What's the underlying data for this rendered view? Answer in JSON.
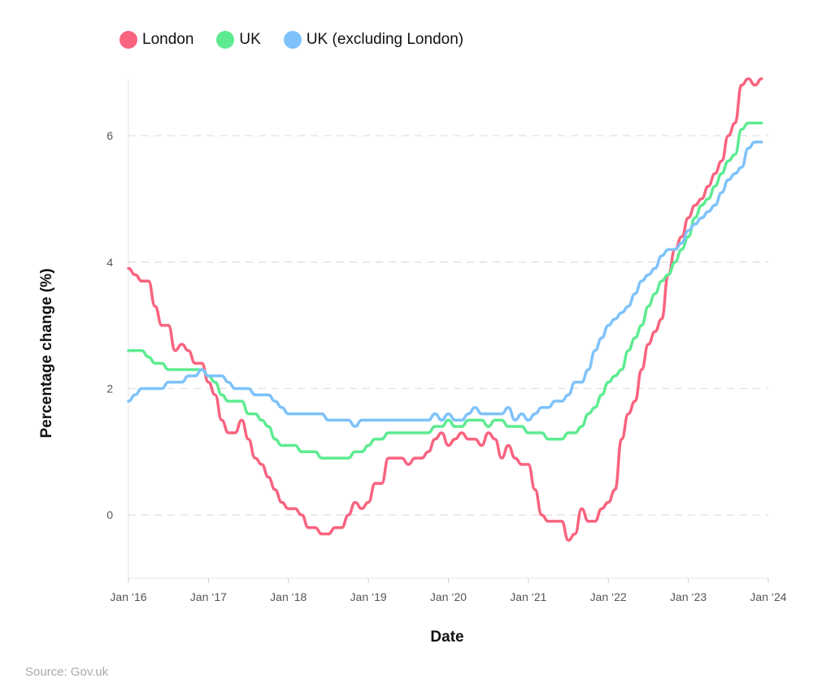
{
  "chart_data": {
    "type": "line",
    "xlabel": "Date",
    "ylabel": "Percentage change (%)",
    "source": "Source: Gov.uk",
    "x_start": "2016-01",
    "x_frequency": "monthly",
    "x_ticks": [
      "Jan ‘16",
      "Jan ‘17",
      "Jan ‘18",
      "Jan ‘19",
      "Jan ‘20",
      "Jan ‘21",
      "Jan ‘22",
      "Jan ‘23",
      "Jan ‘24"
    ],
    "y_ticks": [
      0,
      2,
      4,
      6
    ],
    "ylim": [
      -1,
      6.9
    ],
    "grid": "horizontal dashed",
    "legend": "top-left",
    "series": [
      {
        "name": "London",
        "color": "#f9637f",
        "values": [
          3.9,
          3.8,
          3.7,
          3.7,
          3.3,
          3.0,
          3.0,
          2.6,
          2.7,
          2.6,
          2.4,
          2.4,
          2.1,
          1.9,
          1.5,
          1.3,
          1.3,
          1.5,
          1.2,
          0.9,
          0.8,
          0.6,
          0.4,
          0.2,
          0.1,
          0.1,
          0.0,
          -0.2,
          -0.2,
          -0.3,
          -0.3,
          -0.2,
          -0.2,
          0.0,
          0.2,
          0.1,
          0.2,
          0.5,
          0.5,
          0.9,
          0.9,
          0.9,
          0.8,
          0.9,
          0.9,
          1.0,
          1.2,
          1.3,
          1.1,
          1.2,
          1.3,
          1.2,
          1.2,
          1.1,
          1.3,
          1.2,
          0.9,
          1.1,
          0.9,
          0.8,
          0.8,
          0.4,
          0.0,
          -0.1,
          -0.1,
          -0.1,
          -0.4,
          -0.3,
          0.1,
          -0.1,
          -0.1,
          0.1,
          0.2,
          0.4,
          1.2,
          1.6,
          1.8,
          2.3,
          2.7,
          2.9,
          3.1,
          3.8,
          4.2,
          4.4,
          4.7,
          4.9,
          5.0,
          5.2,
          5.4,
          5.6,
          6.0,
          6.2,
          6.8,
          6.9,
          6.8,
          6.9
        ]
      },
      {
        "name": "UK",
        "color": "#5deb91",
        "values": [
          2.6,
          2.6,
          2.6,
          2.5,
          2.4,
          2.4,
          2.3,
          2.3,
          2.3,
          2.3,
          2.3,
          2.3,
          2.2,
          2.1,
          1.9,
          1.8,
          1.8,
          1.8,
          1.6,
          1.6,
          1.5,
          1.4,
          1.2,
          1.1,
          1.1,
          1.1,
          1.0,
          1.0,
          1.0,
          0.9,
          0.9,
          0.9,
          0.9,
          0.9,
          1.0,
          1.0,
          1.1,
          1.2,
          1.2,
          1.3,
          1.3,
          1.3,
          1.3,
          1.3,
          1.3,
          1.3,
          1.4,
          1.4,
          1.5,
          1.4,
          1.4,
          1.5,
          1.5,
          1.5,
          1.4,
          1.5,
          1.5,
          1.4,
          1.4,
          1.4,
          1.3,
          1.3,
          1.3,
          1.2,
          1.2,
          1.2,
          1.3,
          1.3,
          1.4,
          1.6,
          1.7,
          1.9,
          2.1,
          2.2,
          2.3,
          2.6,
          2.8,
          3.0,
          3.3,
          3.5,
          3.7,
          3.8,
          4.0,
          4.2,
          4.4,
          4.7,
          4.9,
          5.0,
          5.2,
          5.4,
          5.6,
          5.7,
          6.1,
          6.2,
          6.2,
          6.2
        ]
      },
      {
        "name": "UK (excluding London)",
        "color": "#7ec2fb",
        "values": [
          1.8,
          1.9,
          2.0,
          2.0,
          2.0,
          2.0,
          2.1,
          2.1,
          2.1,
          2.2,
          2.2,
          2.3,
          2.2,
          2.2,
          2.2,
          2.1,
          2.0,
          2.0,
          2.0,
          1.9,
          1.9,
          1.9,
          1.8,
          1.7,
          1.6,
          1.6,
          1.6,
          1.6,
          1.6,
          1.6,
          1.5,
          1.5,
          1.5,
          1.5,
          1.4,
          1.5,
          1.5,
          1.5,
          1.5,
          1.5,
          1.5,
          1.5,
          1.5,
          1.5,
          1.5,
          1.5,
          1.6,
          1.5,
          1.6,
          1.5,
          1.5,
          1.6,
          1.7,
          1.6,
          1.6,
          1.6,
          1.6,
          1.7,
          1.5,
          1.6,
          1.5,
          1.6,
          1.7,
          1.7,
          1.8,
          1.8,
          1.9,
          2.1,
          2.1,
          2.3,
          2.6,
          2.8,
          3.0,
          3.1,
          3.2,
          3.3,
          3.5,
          3.7,
          3.8,
          3.9,
          4.1,
          4.2,
          4.2,
          4.3,
          4.5,
          4.6,
          4.7,
          4.8,
          4.9,
          5.1,
          5.3,
          5.4,
          5.5,
          5.8,
          5.9,
          5.9
        ]
      }
    ]
  }
}
